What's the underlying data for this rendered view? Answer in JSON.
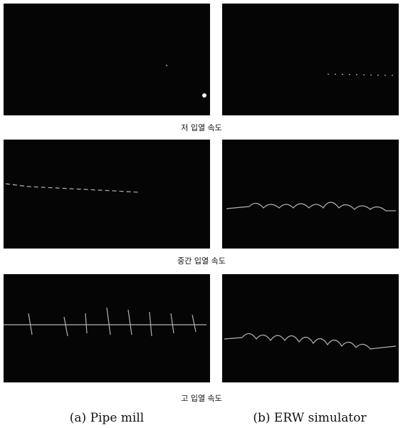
{
  "rows": [
    {
      "label": "저 입열 속도"
    },
    {
      "label": "중간 입열 속도"
    },
    {
      "label": "고 입열 속도"
    }
  ],
  "captions": {
    "left": "(a) Pipe mill",
    "right": "(b) ERW simulator"
  }
}
